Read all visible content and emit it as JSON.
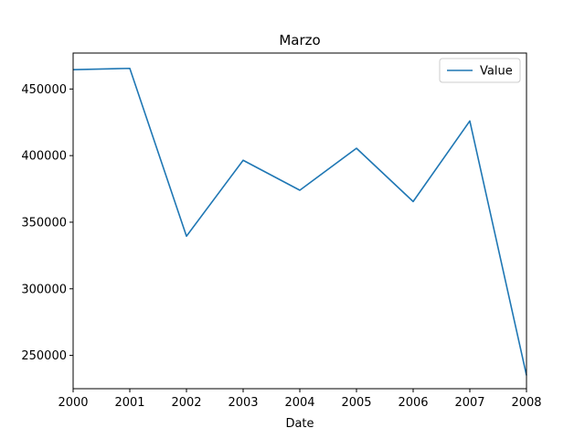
{
  "chart_data": {
    "type": "line",
    "title": "Marzo",
    "xlabel": "Date",
    "ylabel": "",
    "x": [
      "2000",
      "2001",
      "2002",
      "2003",
      "2004",
      "2005",
      "2006",
      "2007",
      "2008"
    ],
    "series": [
      {
        "name": "Value",
        "color": "#1f77b4",
        "values": [
          464500,
          465500,
          339500,
          396500,
          374000,
          405500,
          365500,
          426000,
          235000
        ]
      }
    ],
    "xlim": [
      2000,
      2008
    ],
    "ylim": [
      225000,
      477000
    ],
    "yticks": [
      250000,
      300000,
      350000,
      400000,
      450000
    ],
    "ytick_labels": [
      "250000",
      "300000",
      "350000",
      "400000",
      "450000"
    ],
    "legend": "top-right",
    "grid": false
  }
}
